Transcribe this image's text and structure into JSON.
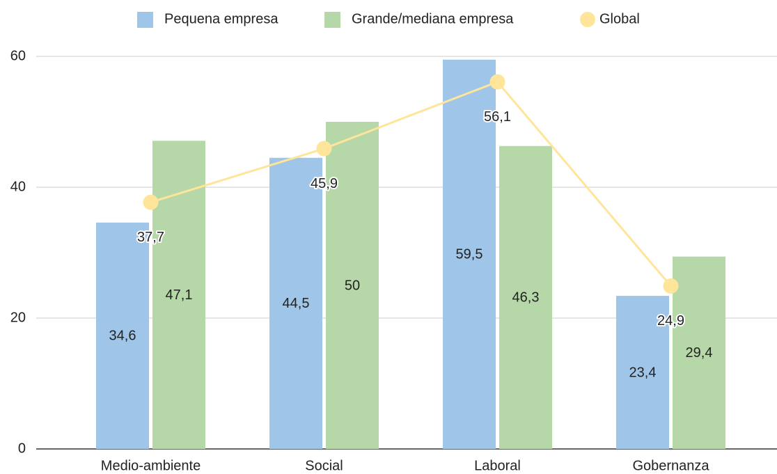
{
  "chart_data": {
    "type": "bar",
    "categories": [
      "Medio-ambiente",
      "Social",
      "Laboral",
      "Gobernanza"
    ],
    "series": [
      {
        "name": "Pequena empresa",
        "color": "#9fc5e8",
        "values": [
          34.6,
          44.5,
          59.5,
          23.4
        ],
        "value_labels": [
          "34,6",
          "44,5",
          "59,5",
          "23,4"
        ]
      },
      {
        "name": "Grande/mediana empresa",
        "color": "#b6d7a8",
        "values": [
          47.1,
          50,
          46.3,
          29.4
        ],
        "value_labels": [
          "47,1",
          "50",
          "46,3",
          "29,4"
        ]
      },
      {
        "name": "Global",
        "type": "line",
        "color": "#ffe599",
        "values": [
          37.7,
          45.9,
          56.1,
          24.9
        ],
        "value_labels": [
          "37,7",
          "45,9",
          "56,1",
          "24,9"
        ]
      }
    ],
    "ylim": [
      0,
      60
    ],
    "yticks": [
      0,
      20,
      40,
      60
    ],
    "grid": true,
    "legend": "top"
  }
}
